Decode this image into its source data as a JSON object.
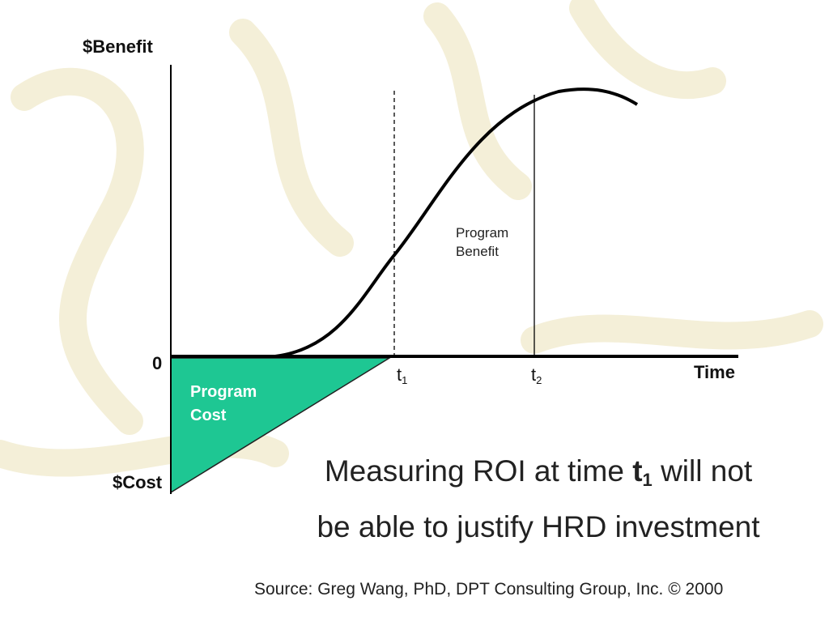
{
  "colors": {
    "cost_fill": "#1ec793",
    "curve": "#000000",
    "watermark": "#f4efd8"
  },
  "diagram": {
    "y_axis_top_label": "$Benefit",
    "y_axis_bottom_label": "$Cost",
    "origin_label": "0",
    "x_axis_label": "Time",
    "t1_label": {
      "base": "t",
      "sub": "1"
    },
    "t2_label": {
      "base": "t",
      "sub": "2"
    },
    "benefit_region_label": [
      "Program",
      "Benefit"
    ],
    "cost_region_label": [
      "Program",
      "Cost"
    ]
  },
  "statement": {
    "before": "Measuring ROI at time ",
    "t_symbol": "t",
    "t_sub": "1",
    "after_line1": " will not",
    "line2": "be able to justify HRD investment"
  },
  "source": "Source: Greg Wang, PhD, DPT Consulting Group, Inc. © 2000"
}
